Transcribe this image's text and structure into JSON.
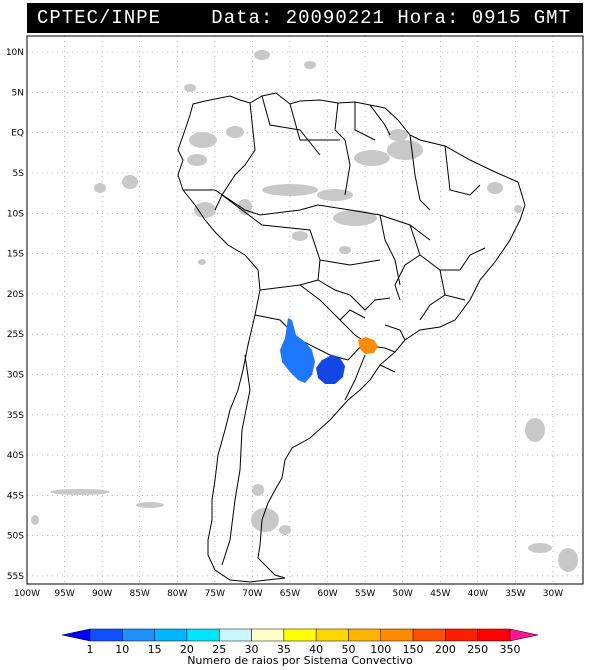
{
  "header": {
    "org": "CPTEC/INPE",
    "data_label": "Data:",
    "date": "20090221",
    "hora_label": "Hora:",
    "time": "0915",
    "tz": "GMT"
  },
  "map": {
    "lat_labels": [
      "10N",
      "5N",
      "EQ",
      "5S",
      "10S",
      "15S",
      "20S",
      "25S",
      "30S",
      "35S",
      "40S",
      "45S",
      "50S",
      "55S"
    ],
    "lon_labels": [
      "100W",
      "95W",
      "90W",
      "85W",
      "80W",
      "75W",
      "70W",
      "65W",
      "60W",
      "55W",
      "50W",
      "45W",
      "40W",
      "35W",
      "30W"
    ],
    "lat_min": -56,
    "lat_max": 12,
    "lon_min": -100,
    "lon_max": -26
  },
  "legend": {
    "caption": "Numero de raios por Sistema Convectivo",
    "levels": [
      "1",
      "10",
      "15",
      "20",
      "25",
      "30",
      "35",
      "40",
      "50",
      "100",
      "150",
      "200",
      "250",
      "350"
    ],
    "colors": [
      "#0000ff",
      "#1050ff",
      "#1e90ff",
      "#00b4ff",
      "#00e6ff",
      "#c8f5ff",
      "#ffffc8",
      "#ffff00",
      "#ffd700",
      "#ffb400",
      "#ff8c00",
      "#ff5000",
      "#ff1e00",
      "#ff0000",
      "#ff1493"
    ]
  },
  "colors": {
    "cloud_gray": "#c8c8c8",
    "system_blue": "#1e78ff",
    "system_dark_blue": "#1446e6",
    "system_orange": "#ff8c00"
  }
}
